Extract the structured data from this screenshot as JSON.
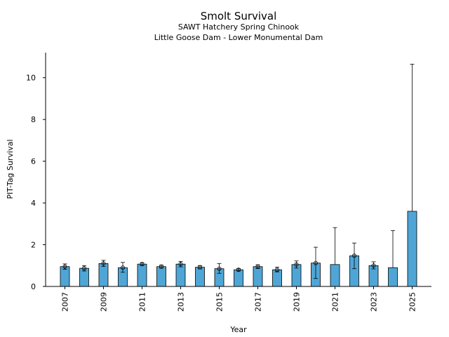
{
  "chart_data": {
    "type": "bar",
    "title": "Smolt Survival",
    "subtitle_1": "SAWT Hatchery Spring Chinook",
    "subtitle_2": "Little Goose Dam - Lower Monumental Dam",
    "xlabel": "Year",
    "ylabel": "PIT-Tag Survival",
    "ylim": [
      0,
      11.2
    ],
    "yticks": [
      0,
      2,
      4,
      6,
      8,
      10
    ],
    "xtick_labels": [
      "2007",
      "2009",
      "2011",
      "2013",
      "2015",
      "2017",
      "2019",
      "2021",
      "2023",
      "2025"
    ],
    "bar_color": "#4fa6d6",
    "grid": false,
    "categories": [
      "2007",
      "2008",
      "2009",
      "2010",
      "2011",
      "2012",
      "2013",
      "2014",
      "2015",
      "2016",
      "2017",
      "2018",
      "2019",
      "2020",
      "2021",
      "2022",
      "2023",
      "2024",
      "2025"
    ],
    "values": [
      0.95,
      0.87,
      1.1,
      0.9,
      1.07,
      0.95,
      1.07,
      0.92,
      0.85,
      0.8,
      0.95,
      0.8,
      1.05,
      1.12,
      1.05,
      1.47,
      1.0,
      0.9,
      3.6
    ],
    "error_low": [
      0.82,
      0.74,
      0.96,
      0.68,
      1.0,
      0.88,
      0.94,
      0.84,
      0.63,
      0.74,
      0.86,
      0.7,
      0.88,
      0.38,
      null,
      0.85,
      0.84,
      null,
      null
    ],
    "error_high": [
      1.08,
      1.0,
      1.25,
      1.15,
      1.14,
      1.02,
      1.2,
      1.0,
      1.1,
      0.86,
      1.04,
      0.92,
      1.22,
      1.88,
      2.82,
      2.08,
      1.18,
      2.68,
      10.65
    ],
    "has_marker": [
      true,
      true,
      true,
      true,
      true,
      true,
      true,
      true,
      true,
      true,
      true,
      true,
      true,
      true,
      false,
      true,
      true,
      false,
      false
    ]
  }
}
